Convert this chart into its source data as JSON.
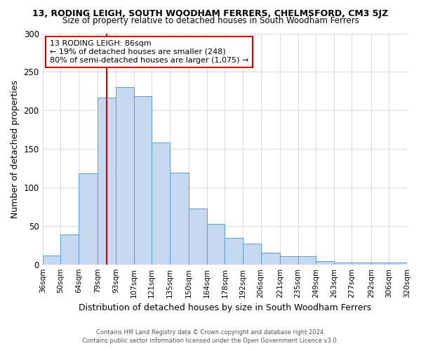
{
  "title": "13, RODING LEIGH, SOUTH WOODHAM FERRERS, CHELMSFORD, CM3 5JZ",
  "subtitle": "Size of property relative to detached houses in South Woodham Ferrers",
  "xlabel": "Distribution of detached houses by size in South Woodham Ferrers",
  "ylabel": "Number of detached properties",
  "bin_labels": [
    "36sqm",
    "50sqm",
    "64sqm",
    "79sqm",
    "93sqm",
    "107sqm",
    "121sqm",
    "135sqm",
    "150sqm",
    "164sqm",
    "178sqm",
    "192sqm",
    "206sqm",
    "221sqm",
    "235sqm",
    "249sqm",
    "263sqm",
    "277sqm",
    "292sqm",
    "306sqm",
    "320sqm"
  ],
  "bin_edges": [
    36,
    50,
    64,
    79,
    93,
    107,
    121,
    135,
    150,
    164,
    178,
    192,
    206,
    221,
    235,
    249,
    263,
    277,
    292,
    306,
    320
  ],
  "bar_heights": [
    12,
    39,
    118,
    217,
    230,
    218,
    158,
    119,
    73,
    53,
    34,
    27,
    15,
    11,
    11,
    4,
    2,
    2,
    2,
    2
  ],
  "bar_color": "#c5d9f1",
  "bar_edge_color": "#5b9bd5",
  "vline_x": 86,
  "vline_color": "#cc0000",
  "ylim": [
    0,
    300
  ],
  "yticks": [
    0,
    50,
    100,
    150,
    200,
    250,
    300
  ],
  "annotation_text": "13 RODING LEIGH: 86sqm\n← 19% of detached houses are smaller (248)\n80% of semi-detached houses are larger (1,075) →",
  "annotation_box_color": "#cc0000",
  "footer_line1": "Contains HM Land Registry data © Crown copyright and database right 2024.",
  "footer_line2": "Contains public sector information licensed under the Open Government Licence v3.0.",
  "background_color": "#ffffff",
  "grid_color": "#cccccc"
}
